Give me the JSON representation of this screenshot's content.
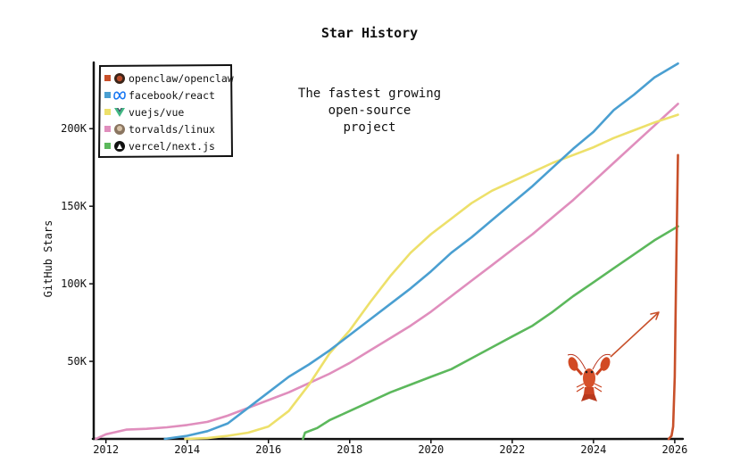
{
  "chart_data": {
    "type": "line",
    "title": "Star History",
    "xlabel": "",
    "ylabel": "GitHub Stars",
    "xlim": [
      2011.7,
      2026.2
    ],
    "ylim": [
      0,
      245000
    ],
    "x_ticks": [
      "2012",
      "2014",
      "2016",
      "2018",
      "2020",
      "2022",
      "2024",
      "2026"
    ],
    "y_ticks": [
      "50K",
      "100K",
      "150K",
      "200K"
    ],
    "legend_position": "top-left",
    "grid": false,
    "annotation": {
      "lines": [
        "The fastest growing",
        "open-source",
        "project"
      ],
      "icon": "lobster-icon"
    },
    "series": [
      {
        "name": "openclaw/openclaw",
        "color": "#c8502a",
        "icon": "openclaw-avatar-icon",
        "points": [
          [
            2025.85,
            0
          ],
          [
            2025.92,
            2000
          ],
          [
            2025.96,
            8000
          ],
          [
            2026.0,
            40000
          ],
          [
            2026.03,
            100000
          ],
          [
            2026.06,
            150000
          ],
          [
            2026.08,
            183000
          ]
        ]
      },
      {
        "name": "facebook/react",
        "color": "#4a9fd1",
        "icon": "meta-logo-icon",
        "points": [
          [
            2013.45,
            0
          ],
          [
            2014.0,
            2000
          ],
          [
            2014.5,
            5000
          ],
          [
            2015.0,
            10000
          ],
          [
            2015.5,
            20000
          ],
          [
            2016.0,
            30000
          ],
          [
            2016.5,
            40000
          ],
          [
            2017.0,
            48000
          ],
          [
            2017.5,
            57000
          ],
          [
            2018.0,
            67000
          ],
          [
            2018.5,
            77000
          ],
          [
            2019.0,
            87000
          ],
          [
            2019.5,
            97000
          ],
          [
            2020.0,
            108000
          ],
          [
            2020.5,
            120000
          ],
          [
            2021.0,
            130000
          ],
          [
            2021.5,
            141000
          ],
          [
            2022.0,
            152000
          ],
          [
            2022.5,
            163000
          ],
          [
            2023.0,
            175000
          ],
          [
            2023.5,
            187000
          ],
          [
            2024.0,
            198000
          ],
          [
            2024.5,
            212000
          ],
          [
            2025.0,
            222000
          ],
          [
            2025.5,
            233000
          ],
          [
            2026.08,
            242000
          ]
        ]
      },
      {
        "name": "vuejs/vue",
        "color": "#ede06a",
        "icon": "vue-logo-icon",
        "points": [
          [
            2013.95,
            0
          ],
          [
            2014.5,
            500
          ],
          [
            2015.0,
            2000
          ],
          [
            2015.5,
            4000
          ],
          [
            2016.0,
            8000
          ],
          [
            2016.5,
            18000
          ],
          [
            2017.0,
            35000
          ],
          [
            2017.5,
            55000
          ],
          [
            2018.0,
            70000
          ],
          [
            2018.5,
            88000
          ],
          [
            2019.0,
            105000
          ],
          [
            2019.5,
            120000
          ],
          [
            2020.0,
            132000
          ],
          [
            2020.5,
            142000
          ],
          [
            2021.0,
            152000
          ],
          [
            2021.5,
            160000
          ],
          [
            2022.0,
            166000
          ],
          [
            2022.5,
            172000
          ],
          [
            2023.0,
            178000
          ],
          [
            2023.5,
            183000
          ],
          [
            2024.0,
            188000
          ],
          [
            2024.5,
            194000
          ],
          [
            2025.0,
            199000
          ],
          [
            2025.5,
            204000
          ],
          [
            2026.08,
            209000
          ]
        ]
      },
      {
        "name": "torvalds/linux",
        "color": "#e08ebd",
        "icon": "torvalds-avatar-icon",
        "points": [
          [
            2011.75,
            0
          ],
          [
            2012.0,
            3000
          ],
          [
            2012.5,
            6000
          ],
          [
            2013.0,
            6500
          ],
          [
            2013.5,
            7500
          ],
          [
            2014.0,
            9000
          ],
          [
            2014.5,
            11000
          ],
          [
            2015.0,
            15000
          ],
          [
            2015.5,
            20000
          ],
          [
            2016.0,
            25000
          ],
          [
            2016.5,
            30000
          ],
          [
            2017.0,
            36000
          ],
          [
            2017.5,
            42000
          ],
          [
            2018.0,
            49000
          ],
          [
            2018.5,
            57000
          ],
          [
            2019.0,
            65000
          ],
          [
            2019.5,
            73000
          ],
          [
            2020.0,
            82000
          ],
          [
            2020.5,
            92000
          ],
          [
            2021.0,
            102000
          ],
          [
            2021.5,
            112000
          ],
          [
            2022.0,
            122000
          ],
          [
            2022.5,
            132000
          ],
          [
            2023.0,
            143000
          ],
          [
            2023.5,
            154000
          ],
          [
            2024.0,
            166000
          ],
          [
            2024.5,
            178000
          ],
          [
            2025.0,
            190000
          ],
          [
            2025.5,
            202000
          ],
          [
            2026.08,
            216000
          ]
        ]
      },
      {
        "name": "vercel/next.js",
        "color": "#5cb85c",
        "icon": "nextjs-logo-icon",
        "points": [
          [
            2016.85,
            0
          ],
          [
            2016.9,
            4000
          ],
          [
            2017.2,
            7000
          ],
          [
            2017.5,
            12000
          ],
          [
            2018.0,
            18000
          ],
          [
            2018.5,
            24000
          ],
          [
            2019.0,
            30000
          ],
          [
            2019.5,
            35000
          ],
          [
            2020.0,
            40000
          ],
          [
            2020.5,
            45000
          ],
          [
            2021.0,
            52000
          ],
          [
            2021.5,
            59000
          ],
          [
            2022.0,
            66000
          ],
          [
            2022.5,
            73000
          ],
          [
            2023.0,
            82000
          ],
          [
            2023.5,
            92000
          ],
          [
            2024.0,
            101000
          ],
          [
            2024.5,
            110000
          ],
          [
            2025.0,
            119000
          ],
          [
            2025.5,
            128000
          ],
          [
            2026.08,
            137000
          ]
        ]
      }
    ]
  }
}
